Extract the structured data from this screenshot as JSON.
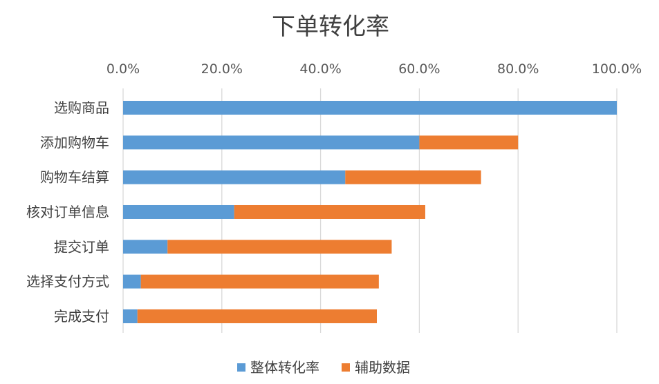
{
  "chart_data": {
    "type": "bar",
    "orientation": "horizontal",
    "stacked": true,
    "title": "下单转化率",
    "categories": [
      "选购商品",
      "添加购物车",
      "购物车结算",
      "核对订单信息",
      "提交订单",
      "选择支付方式",
      "完成支付"
    ],
    "series": [
      {
        "name": "整体转化率",
        "color": "#5B9BD5",
        "values": [
          1.0,
          0.6,
          0.45,
          0.225,
          0.09,
          0.036,
          0.029
        ]
      },
      {
        "name": "辅助数据",
        "color": "#ED7D31",
        "values": [
          0.0,
          0.2,
          0.275,
          0.387,
          0.454,
          0.482,
          0.485
        ]
      }
    ],
    "xlim": [
      0,
      1.0
    ],
    "x_ticks": [
      "0.0%",
      "20.0%",
      "40.0%",
      "60.0%",
      "80.0%",
      "100.0%"
    ],
    "x_tick_values": [
      0,
      0.2,
      0.4,
      0.6,
      0.8,
      1.0
    ],
    "axis_position": "top",
    "grid": true,
    "legend_position": "bottom"
  }
}
